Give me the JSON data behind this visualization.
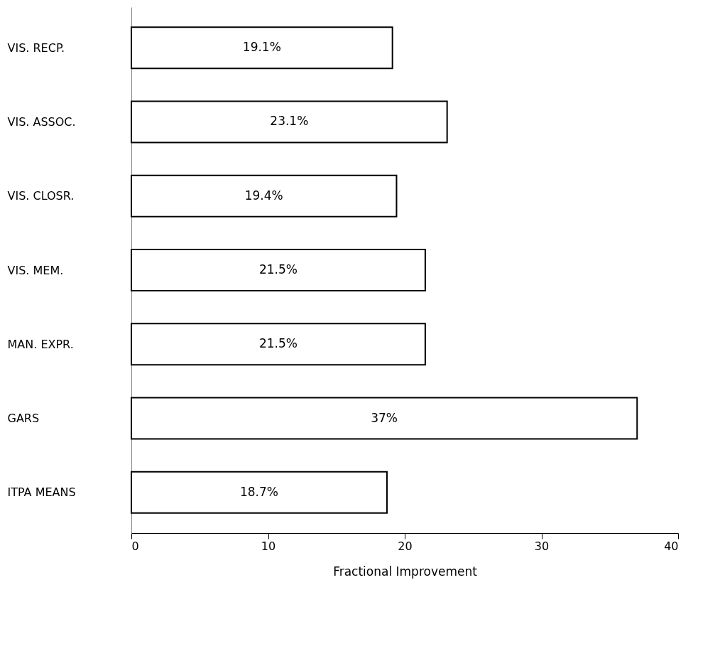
{
  "chart_data": {
    "type": "bar",
    "orientation": "horizontal",
    "xlabel": "Fractional Improvement",
    "categories": [
      "VIS. RECP.",
      "VIS. ASSOC.",
      "VIS. CLOSR.",
      "VIS. MEM.",
      "MAN. EXPR.",
      "GARS",
      "ITPA MEANS"
    ],
    "values": [
      19.1,
      23.1,
      19.4,
      21.5,
      21.5,
      37,
      18.7
    ],
    "value_labels": [
      "19.1%",
      "23.1%",
      "19.4%",
      "21.5%",
      "21.5%",
      "37%",
      "18.7%"
    ],
    "color": "#ffffff",
    "xlim": [
      0,
      40
    ],
    "xticks": [
      0,
      10,
      20,
      30,
      40
    ],
    "grid": false
  }
}
